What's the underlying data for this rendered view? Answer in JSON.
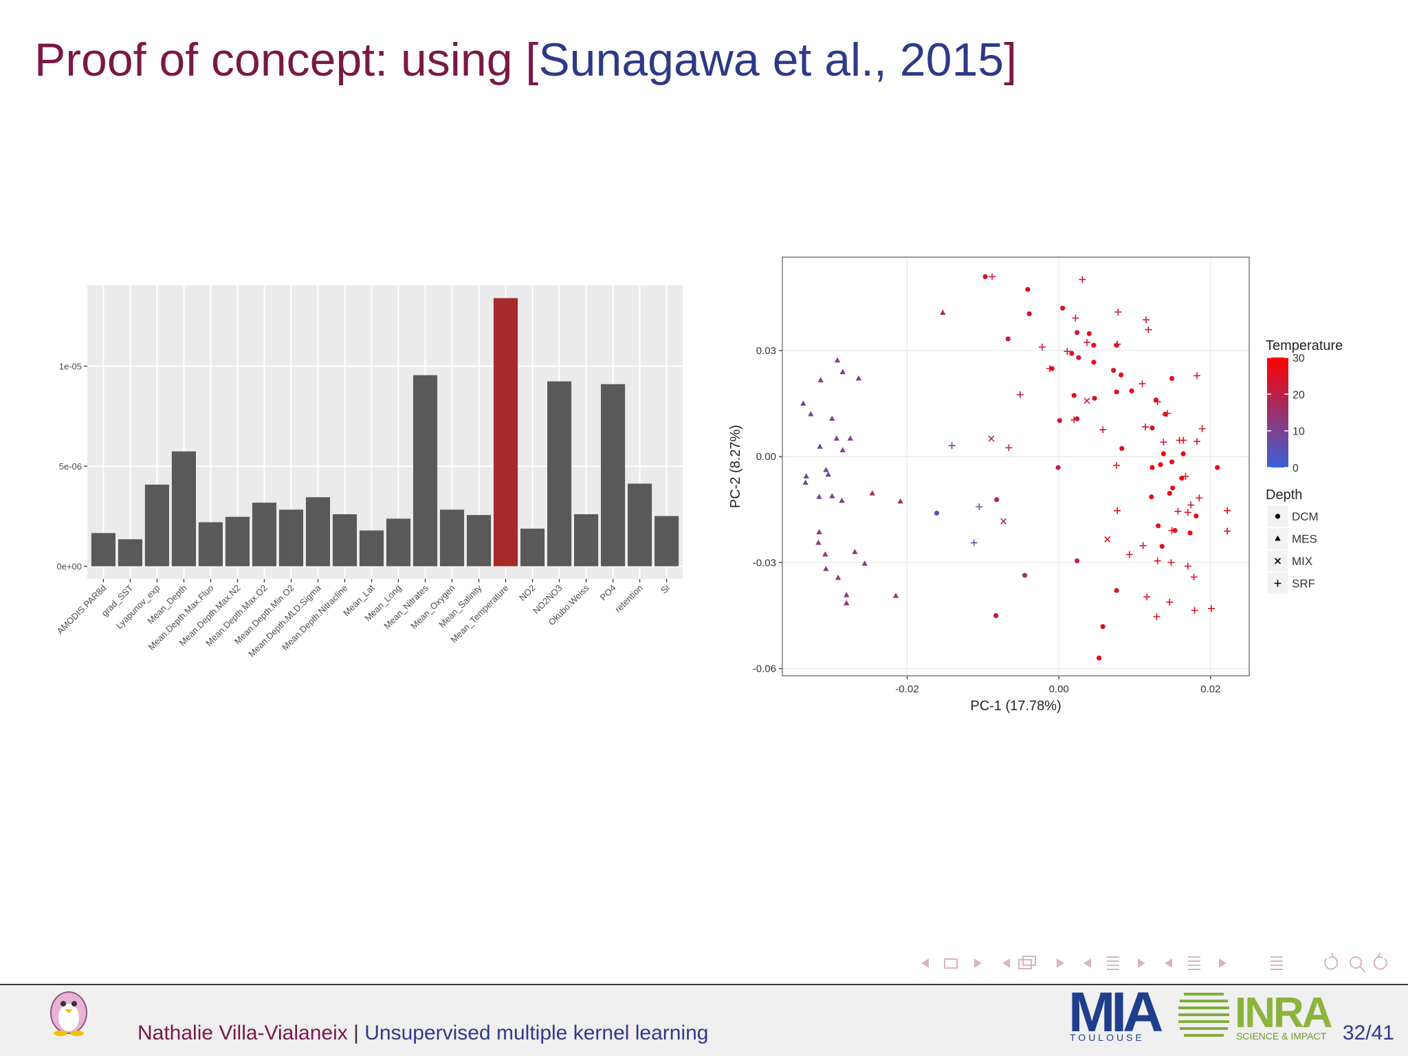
{
  "title": [
    "Proof of concept: using [",
    "Sunagawa et al., 2015",
    "]"
  ],
  "chart_data": [
    {
      "type": "bar",
      "categories": [
        "AMODIS.PAR8d",
        "grad_SST",
        "Lyapunov_exp",
        "Mean_Depth",
        "Mean.Depth.Max.Fluo",
        "Mean.Depth.Max.N2",
        "Mean.Depth.Max.O2",
        "Mean.Depth.Min.O2",
        "Mean.Depth.MLD.Sigma",
        "Mean.Depth.Nitracline",
        "Mean_Lat",
        "Mean_Long",
        "Mean_Nitrates",
        "Mean_Oxygen",
        "Mean_Salinity",
        "Mean_Temperature",
        "NO2",
        "NO2NO3",
        "Okubo.Weiss",
        "PO4",
        "retention",
        "Si"
      ],
      "values": [
        1.66e-06,
        1.35e-06,
        4.08e-06,
        5.74e-06,
        2.2e-06,
        2.47e-06,
        3.18e-06,
        2.83e-06,
        3.45e-06,
        2.6e-06,
        1.79e-06,
        2.38e-06,
        9.55e-06,
        2.83e-06,
        2.56e-06,
        1.34e-05,
        1.88e-06,
        9.24e-06,
        2.6e-06,
        9.1e-06,
        4.13e-06,
        2.51e-06
      ],
      "colors": [
        "#595959",
        "#595959",
        "#595959",
        "#595959",
        "#595959",
        "#595959",
        "#595959",
        "#595959",
        "#595959",
        "#595959",
        "#595959",
        "#595959",
        "#595959",
        "#595959",
        "#595959",
        "#a52a2a",
        "#595959",
        "#595959",
        "#595959",
        "#595959",
        "#595959",
        "#595959"
      ],
      "ylim": [
        -6.3e-07,
        1.404e-05
      ],
      "yticks": [
        {
          "value": 0,
          "label": "0e+00"
        },
        {
          "value": 5e-06,
          "label": "5e-06"
        },
        {
          "value": 1e-05,
          "label": "1e-05"
        }
      ],
      "grid": true
    },
    {
      "type": "scatter",
      "xlabel": "PC-1 (17.78%)",
      "ylabel": "PC-2 (8.27%)",
      "xlim": [
        -0.03645,
        0.02509
      ],
      "ylim": [
        -0.06203,
        0.05644
      ],
      "xticks": [
        -0.02,
        {
          "value": 0,
          "label": "0.00"
        },
        0.02
      ],
      "yticks": [
        -0.06,
        -0.03,
        {
          "value": 0,
          "label": "0.00"
        },
        0.03
      ],
      "grid": true,
      "legend_position": "right",
      "color_title": "Temperature",
      "color_scale": {
        "low": "#3a62d8",
        "high": "#ff0000",
        "range": [
          0,
          30
        ],
        "ticks": [
          0,
          10,
          20,
          30
        ]
      },
      "shape_title": "Depth",
      "series": [
        {
          "name": "DCM",
          "marker": "circle",
          "x": [
            -0.0097,
            -0.0041,
            -0.0039,
            -0.0067,
            0.0005,
            0.0024,
            0.004,
            0.0046,
            0.0017,
            0.0026,
            0.0046,
            -0.0009,
            0.002,
            0.0047,
            0.0072,
            0.0082,
            0.0076,
            0.0096,
            0.0001,
            0.0024,
            0.0083,
            0.0076,
            0.0128,
            0.0149,
            0.014,
            0.0123,
            0.0149,
            0.0123,
            0.0134,
            0.0138,
            0.015,
            0.0146,
            0.0162,
            0.0164,
            0.0122,
            0.0131,
            0.0136,
            0.0153,
            0.0173,
            0.0181,
            0.0209,
            -0.0001,
            -0.0082,
            -0.0161,
            -0.0045,
            0.0024,
            -0.0083,
            0.0076,
            0.0058,
            0.0053
          ],
          "values": [
            0.0509,
            0.0473,
            0.0404,
            0.0333,
            0.042,
            0.0351,
            0.0348,
            0.0315,
            0.0292,
            0.028,
            0.0267,
            0.0249,
            0.0173,
            0.0165,
            0.0244,
            0.0231,
            0.0315,
            0.0186,
            0.0102,
            0.0107,
            0.0023,
            0.0183,
            0.016,
            0.0221,
            0.012,
            0.0081,
            -0.0015,
            -0.0031,
            -0.0023,
            0.0008,
            -0.0089,
            -0.0104,
            -0.0061,
            0.0008,
            -0.0114,
            -0.0196,
            -0.0254,
            -0.0209,
            -0.0216,
            -0.0168,
            -0.0031,
            -0.0031,
            -0.0122,
            -0.016,
            -0.0336,
            -0.0295,
            -0.045,
            -0.0379,
            -0.0481,
            -0.057
          ],
          "temperature": [
            25,
            25,
            24,
            22,
            24,
            24,
            26,
            26,
            25,
            24,
            27,
            28,
            26,
            25,
            25,
            25,
            28,
            28,
            22,
            24,
            25,
            27,
            27,
            26,
            25,
            25,
            26,
            28,
            28,
            29,
            26,
            26,
            28,
            26,
            26,
            24,
            26,
            26,
            28,
            27,
            26,
            20,
            20,
            4,
            14,
            20,
            22,
            24,
            25,
            27
          ]
        },
        {
          "name": "MES",
          "marker": "triangle",
          "x": [
            -0.0153,
            -0.0292,
            -0.0285,
            -0.0314,
            -0.0264,
            -0.0337,
            -0.0327,
            -0.0299,
            -0.0315,
            -0.0293,
            -0.0275,
            -0.0285,
            -0.0307,
            -0.0304,
            -0.0333,
            -0.0334,
            -0.0316,
            -0.0299,
            -0.0286,
            -0.0246,
            -0.0209,
            -0.0316,
            -0.0317,
            -0.0308,
            -0.0269,
            -0.0256,
            -0.0307,
            -0.0291,
            -0.028,
            -0.028,
            -0.0215
          ],
          "values": [
            0.0407,
            0.0272,
            0.0239,
            0.0216,
            0.0221,
            0.015,
            0.012,
            0.0107,
            0.0028,
            0.0051,
            0.0051,
            0.0018,
            -0.0038,
            -0.0051,
            -0.0056,
            -0.0074,
            -0.0114,
            -0.0112,
            -0.0125,
            -0.0104,
            -0.0127,
            -0.0214,
            -0.0244,
            -0.0277,
            -0.027,
            -0.0303,
            -0.0318,
            -0.0343,
            -0.0392,
            -0.0415,
            -0.0394
          ],
          "temperature": [
            18,
            12,
            12,
            12,
            11,
            8,
            8,
            10,
            9,
            11,
            11,
            10,
            9,
            9,
            8,
            8,
            9,
            10,
            11,
            17,
            17,
            12,
            12,
            12,
            13,
            13,
            12,
            13,
            14,
            14,
            16
          ]
        },
        {
          "name": "MIX",
          "marker": "x",
          "x": [
            -0.0089,
            -0.0073,
            0.0037,
            0.0064
          ],
          "values": [
            0.0051,
            -0.0183,
            0.0158,
            -0.0234
          ],
          "temperature": [
            18,
            18,
            22,
            25
          ]
        },
        {
          "name": "SRF",
          "marker": "plus",
          "x": [
            -0.0088,
            0.0031,
            0.0022,
            0.0078,
            0.0115,
            0.0118,
            -0.0022,
            0.0011,
            0.0037,
            0.0077,
            -0.0012,
            0.011,
            0.013,
            0.0182,
            0.0143,
            -0.0051,
            0.002,
            0.0058,
            0.0114,
            0.0189,
            0.0182,
            0.0164,
            0.0159,
            0.0138,
            -0.0141,
            -0.0066,
            0.0076,
            0.0167,
            0.0174,
            0.0185,
            0.017,
            0.0157,
            0.0077,
            0.0222,
            0.0222,
            0.0149,
            0.0111,
            0.0093,
            0.013,
            0.0148,
            0.017,
            0.0178,
            0.0116,
            0.0146,
            0.0129,
            0.0179,
            0.0201,
            -0.0105,
            -0.0112
          ],
          "values": [
            0.0509,
            0.0501,
            0.0392,
            0.0409,
            0.0387,
            0.0359,
            0.031,
            0.0298,
            0.0323,
            0.0318,
            0.0249,
            0.0206,
            0.0155,
            0.0229,
            0.0122,
            0.0175,
            0.0104,
            0.0076,
            0.0084,
            0.0079,
            0.0043,
            0.0046,
            0.0046,
            0.0041,
            0.0031,
            0.0025,
            -0.0025,
            -0.0056,
            -0.0137,
            -0.0117,
            -0.0158,
            -0.0155,
            -0.0153,
            -0.0153,
            -0.0211,
            -0.0209,
            -0.0252,
            -0.0277,
            -0.0295,
            -0.03,
            -0.031,
            -0.0341,
            -0.0397,
            -0.0412,
            -0.0453,
            -0.0435,
            -0.043,
            -0.0142,
            -0.0244
          ],
          "temperature": [
            22,
            22,
            22,
            23,
            22,
            22,
            20,
            22,
            21,
            23,
            24,
            22,
            23,
            22,
            22,
            20,
            21,
            22,
            22,
            23,
            22,
            24,
            23,
            23,
            10,
            16,
            24,
            23,
            24,
            24,
            24,
            25,
            24,
            25,
            25,
            25,
            24,
            24,
            24,
            24,
            24,
            24,
            24,
            24,
            24,
            25,
            26,
            8,
            8
          ]
        }
      ]
    }
  ],
  "footer": {
    "author": "Nathalie Villa-Vialaneix",
    "separator": "|",
    "talk": "Unsupervised multiple kernel learning",
    "page": "32/41",
    "logo_mia": "MIA",
    "logo_mia_sub": "TOULOUSE",
    "logo_inra": "INRA",
    "logo_inra_sub": "SCIENCE & IMPACT"
  }
}
